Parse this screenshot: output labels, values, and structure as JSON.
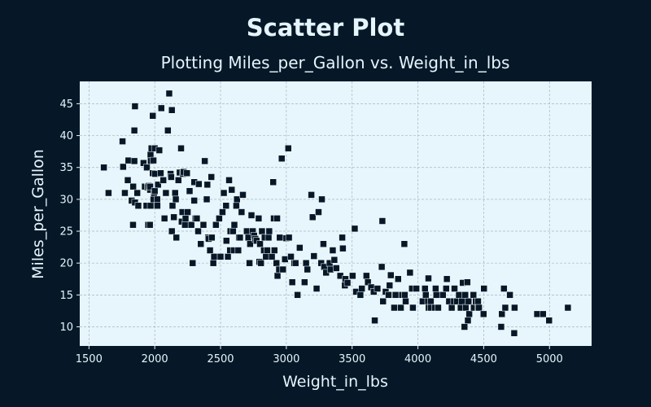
{
  "chart_data": {
    "type": "scatter",
    "title": "Scatter Plot",
    "subtitle": "Plotting Miles_per_Gallon vs. Weight_in_lbs",
    "xlabel": "Weight_in_lbs",
    "ylabel": "Miles_per_Gallon",
    "xlim": [
      1430,
      5320
    ],
    "ylim": [
      7,
      48.5
    ],
    "xticks": [
      "1500",
      "2000",
      "2500",
      "3000",
      "3500",
      "4000",
      "4500",
      "5000"
    ],
    "yticks": [
      "10",
      "15",
      "20",
      "25",
      "30",
      "35",
      "40",
      "45"
    ],
    "grid": true,
    "legend": "none",
    "colors": {
      "background": "#061828",
      "plot_background": "#e6f6fc",
      "marker": "#061828",
      "text": "#e6f4fb"
    },
    "points": [
      [
        1613,
        35
      ],
      [
        1649,
        31
      ],
      [
        1755,
        39.1
      ],
      [
        1760,
        35.1
      ],
      [
        1773,
        31
      ],
      [
        1795,
        33
      ],
      [
        1800,
        36.1
      ],
      [
        1825,
        29.8
      ],
      [
        1834,
        26
      ],
      [
        1835,
        26
      ],
      [
        1836,
        32
      ],
      [
        1845,
        36
      ],
      [
        1845,
        40.8
      ],
      [
        1850,
        29.5
      ],
      [
        1850,
        44.6
      ],
      [
        1867,
        31
      ],
      [
        1875,
        29
      ],
      [
        1915,
        35.7
      ],
      [
        1925,
        32
      ],
      [
        1937,
        29
      ],
      [
        1940,
        35
      ],
      [
        1945,
        31.9
      ],
      [
        1950,
        26
      ],
      [
        1955,
        32.1
      ],
      [
        1963,
        26
      ],
      [
        1965,
        31.5
      ],
      [
        1965,
        32
      ],
      [
        1968,
        29
      ],
      [
        1968,
        37
      ],
      [
        1970,
        36
      ],
      [
        1975,
        38
      ],
      [
        1985,
        43.1
      ],
      [
        1985,
        34.1
      ],
      [
        1990,
        30
      ],
      [
        1990,
        36.1
      ],
      [
        1995,
        31
      ],
      [
        2000,
        38
      ],
      [
        2000,
        31.3
      ],
      [
        2003,
        34
      ],
      [
        2019,
        30
      ],
      [
        2020,
        29
      ],
      [
        2025,
        32.3
      ],
      [
        2035,
        37.7
      ],
      [
        2045,
        34.1
      ],
      [
        2050,
        44.3
      ],
      [
        2065,
        33
      ],
      [
        2074,
        27
      ],
      [
        2085,
        31
      ],
      [
        2100,
        40.8
      ],
      [
        2110,
        46.6
      ],
      [
        2120,
        34
      ],
      [
        2125,
        33.5
      ],
      [
        2130,
        25
      ],
      [
        2130,
        44
      ],
      [
        2135,
        29
      ],
      [
        2145,
        27.2
      ],
      [
        2155,
        31
      ],
      [
        2160,
        30
      ],
      [
        2164,
        24
      ],
      [
        2180,
        33
      ],
      [
        2190,
        34.2
      ],
      [
        2200,
        38
      ],
      [
        2205,
        26.5
      ],
      [
        2210,
        28
      ],
      [
        2215,
        34
      ],
      [
        2220,
        34.3
      ],
      [
        2230,
        26
      ],
      [
        2234,
        27
      ],
      [
        2245,
        34.1
      ],
      [
        2250,
        28
      ],
      [
        2265,
        31.3
      ],
      [
        2278,
        26
      ],
      [
        2288,
        20
      ],
      [
        2300,
        29.8
      ],
      [
        2300,
        32.7
      ],
      [
        2310,
        27
      ],
      [
        2320,
        27
      ],
      [
        2330,
        25
      ],
      [
        2335,
        32.4
      ],
      [
        2350,
        23
      ],
      [
        2370,
        26
      ],
      [
        2380,
        36
      ],
      [
        2395,
        30
      ],
      [
        2400,
        32.3
      ],
      [
        2405,
        24
      ],
      [
        2410,
        23.8
      ],
      [
        2420,
        22
      ],
      [
        2430,
        33.5
      ],
      [
        2434,
        24
      ],
      [
        2445,
        20
      ],
      [
        2451,
        21
      ],
      [
        2465,
        26
      ],
      [
        2490,
        27
      ],
      [
        2500,
        21
      ],
      [
        2515,
        28
      ],
      [
        2525,
        31
      ],
      [
        2542,
        29
      ],
      [
        2545,
        23.5
      ],
      [
        2556,
        21
      ],
      [
        2565,
        33
      ],
      [
        2572,
        22
      ],
      [
        2575,
        25
      ],
      [
        2585,
        31.5
      ],
      [
        2595,
        25
      ],
      [
        2600,
        22
      ],
      [
        2605,
        26
      ],
      [
        2620,
        29
      ],
      [
        2625,
        30
      ],
      [
        2635,
        22
      ],
      [
        2640,
        24
      ],
      [
        2648,
        24
      ],
      [
        2660,
        28
      ],
      [
        2670,
        30.7
      ],
      [
        2700,
        25
      ],
      [
        2711,
        24
      ],
      [
        2720,
        20
      ],
      [
        2725,
        23
      ],
      [
        2735,
        27.5
      ],
      [
        2745,
        25
      ],
      [
        2755,
        24.3
      ],
      [
        2765,
        23.8
      ],
      [
        2774,
        23.5
      ],
      [
        2790,
        27
      ],
      [
        2795,
        20.2
      ],
      [
        2800,
        23
      ],
      [
        2807,
        20
      ],
      [
        2815,
        25
      ],
      [
        2830,
        22
      ],
      [
        2835,
        24
      ],
      [
        2845,
        21
      ],
      [
        2855,
        22
      ],
      [
        2865,
        24
      ],
      [
        2870,
        25
      ],
      [
        2890,
        21
      ],
      [
        2900,
        32.7
      ],
      [
        2905,
        27
      ],
      [
        2910,
        22
      ],
      [
        2925,
        20
      ],
      [
        2930,
        27
      ],
      [
        2933,
        18
      ],
      [
        2945,
        19
      ],
      [
        2950,
        24
      ],
      [
        2965,
        36.4
      ],
      [
        2975,
        19
      ],
      [
        2990,
        20.6
      ],
      [
        3000,
        23.9
      ],
      [
        3015,
        38
      ],
      [
        3020,
        24
      ],
      [
        3035,
        21
      ],
      [
        3045,
        17
      ],
      [
        3060,
        20
      ],
      [
        3070,
        20
      ],
      [
        3085,
        15
      ],
      [
        3102,
        22.4
      ],
      [
        3139,
        17
      ],
      [
        3150,
        20
      ],
      [
        3160,
        19
      ],
      [
        3190,
        30.7
      ],
      [
        3200,
        27.2
      ],
      [
        3210,
        21.1
      ],
      [
        3230,
        16
      ],
      [
        3245,
        28
      ],
      [
        3265,
        20
      ],
      [
        3270,
        30
      ],
      [
        3282,
        23
      ],
      [
        3288,
        19.4
      ],
      [
        3302,
        18.5
      ],
      [
        3329,
        20
      ],
      [
        3336,
        19
      ],
      [
        3353,
        22
      ],
      [
        3365,
        20.5
      ],
      [
        3380,
        19.2
      ],
      [
        3410,
        18
      ],
      [
        3425,
        24
      ],
      [
        3430,
        22.3
      ],
      [
        3445,
        16.5
      ],
      [
        3449,
        17.5
      ],
      [
        3465,
        16.9
      ],
      [
        3504,
        18
      ],
      [
        3520,
        25.4
      ],
      [
        3530,
        15.5
      ],
      [
        3563,
        15
      ],
      [
        3574,
        16
      ],
      [
        3609,
        18
      ],
      [
        3620,
        17
      ],
      [
        3645,
        16.2
      ],
      [
        3664,
        15.5
      ],
      [
        3672,
        11
      ],
      [
        3693,
        16
      ],
      [
        3725,
        19.4
      ],
      [
        3730,
        26.6
      ],
      [
        3735,
        14
      ],
      [
        3755,
        15.5
      ],
      [
        3777,
        15
      ],
      [
        3785,
        16.5
      ],
      [
        3794,
        18.1
      ],
      [
        3820,
        13
      ],
      [
        3830,
        15
      ],
      [
        3850,
        17.5
      ],
      [
        3870,
        13
      ],
      [
        3880,
        15
      ],
      [
        3897,
        23
      ],
      [
        3900,
        15
      ],
      [
        3907,
        14
      ],
      [
        3940,
        18.5
      ],
      [
        3955,
        16
      ],
      [
        3962,
        13
      ],
      [
        3988,
        16
      ],
      [
        4036,
        14
      ],
      [
        4054,
        16
      ],
      [
        4060,
        15
      ],
      [
        4077,
        14
      ],
      [
        4080,
        17.6
      ],
      [
        4082,
        13
      ],
      [
        4098,
        14
      ],
      [
        4100,
        13
      ],
      [
        4129,
        13
      ],
      [
        4135,
        16
      ],
      [
        4140,
        15
      ],
      [
        4154,
        13
      ],
      [
        4190,
        15
      ],
      [
        4215,
        16
      ],
      [
        4220,
        17.5
      ],
      [
        4237,
        14
      ],
      [
        4257,
        13
      ],
      [
        4274,
        14
      ],
      [
        4278,
        16
      ],
      [
        4295,
        14
      ],
      [
        4312,
        15
      ],
      [
        4325,
        13
      ],
      [
        4335,
        14
      ],
      [
        4341,
        16.9
      ],
      [
        4354,
        10
      ],
      [
        4360,
        15
      ],
      [
        4363,
        13
      ],
      [
        4376,
        17
      ],
      [
        4380,
        11
      ],
      [
        4385,
        14
      ],
      [
        4390,
        12
      ],
      [
        4422,
        15
      ],
      [
        4425,
        13
      ],
      [
        4440,
        14
      ],
      [
        4456,
        13
      ],
      [
        4457,
        14
      ],
      [
        4464,
        13
      ],
      [
        4499,
        12
      ],
      [
        4502,
        16
      ],
      [
        4633,
        10
      ],
      [
        4638,
        12
      ],
      [
        4654,
        16
      ],
      [
        4664,
        13
      ],
      [
        4699,
        15
      ],
      [
        4732,
        9
      ],
      [
        4735,
        13
      ],
      [
        4906,
        12
      ],
      [
        4951,
        12
      ],
      [
        4997,
        11
      ],
      [
        5140,
        13
      ]
    ]
  }
}
